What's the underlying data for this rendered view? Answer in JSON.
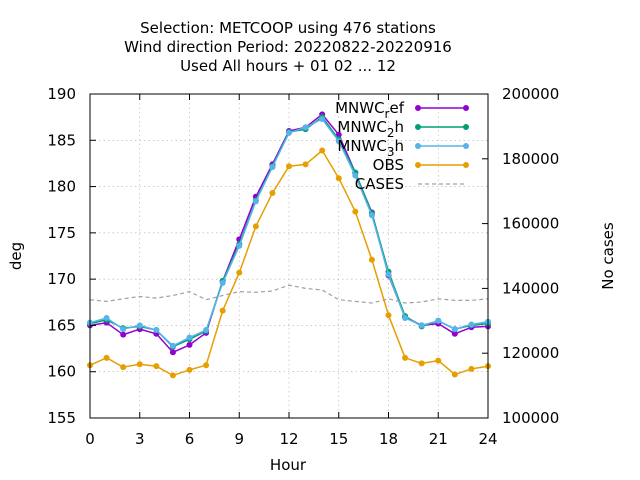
{
  "chart_data": {
    "type": "line",
    "title_lines": [
      "Selection: METCOOP using   476 stations",
      "Wind direction   Period: 20220822-20220916",
      "Used  All hours  + 01 02 ... 12"
    ],
    "xlabel": "Hour",
    "ylabel": "deg",
    "y2label": "No cases",
    "xlim": [
      0,
      24
    ],
    "ylim": [
      155,
      190
    ],
    "y2lim": [
      100000,
      200000
    ],
    "xticks": [
      0,
      3,
      6,
      9,
      12,
      15,
      18,
      21,
      24
    ],
    "yticks": [
      155,
      160,
      165,
      170,
      175,
      180,
      185,
      190
    ],
    "y2ticks": [
      100000,
      120000,
      140000,
      160000,
      180000,
      200000
    ],
    "grid": true,
    "legend_position": "top-right",
    "x": [
      0,
      1,
      2,
      3,
      4,
      5,
      6,
      7,
      8,
      9,
      10,
      11,
      12,
      13,
      14,
      15,
      16,
      17,
      18,
      19,
      20,
      21,
      22,
      23,
      24
    ],
    "series": [
      {
        "name": "MNWC_ref",
        "legend_main": "MNWC",
        "legend_sub": "r",
        "legend_tail": "ef",
        "color": "#9400d3",
        "marker": "circle",
        "axis": "y1",
        "values": [
          165.0,
          165.3,
          164.0,
          164.6,
          164.1,
          162.1,
          162.9,
          164.2,
          169.8,
          174.3,
          178.9,
          182.4,
          186.0,
          186.4,
          187.8,
          185.6,
          181.5,
          177.2,
          170.4,
          165.9,
          165.0,
          165.2,
          164.1,
          164.8,
          164.9
        ]
      },
      {
        "name": "MNWC_2h",
        "legend_main": "MNWC",
        "legend_sub": "2",
        "legend_tail": "h",
        "color": "#009e73",
        "marker": "circle",
        "axis": "y1",
        "values": [
          165.2,
          165.6,
          164.7,
          164.9,
          164.5,
          162.7,
          163.5,
          164.4,
          169.8,
          173.8,
          178.5,
          182.2,
          185.9,
          186.2,
          187.5,
          185.1,
          181.5,
          177.1,
          170.8,
          166.0,
          164.9,
          165.5,
          164.6,
          165.0,
          165.2
        ]
      },
      {
        "name": "MNWC_3h",
        "legend_main": "MNWC",
        "legend_sub": "3",
        "legend_tail": "h",
        "color": "#56b4e9",
        "marker": "circle",
        "axis": "y1",
        "values": [
          165.3,
          165.8,
          164.6,
          165.0,
          164.5,
          162.8,
          163.7,
          164.5,
          169.6,
          173.6,
          178.4,
          182.1,
          185.8,
          186.4,
          187.3,
          184.9,
          181.2,
          176.9,
          170.5,
          165.8,
          165.0,
          165.5,
          164.6,
          165.1,
          165.4
        ]
      },
      {
        "name": "OBS",
        "legend_main": "OBS",
        "legend_sub": "",
        "legend_tail": "",
        "color": "#e69f00",
        "marker": "circle",
        "axis": "y1",
        "values": [
          160.7,
          161.5,
          160.5,
          160.8,
          160.6,
          159.6,
          160.2,
          160.7,
          166.6,
          170.7,
          175.7,
          179.3,
          182.2,
          182.4,
          183.9,
          180.9,
          177.3,
          172.1,
          166.1,
          161.5,
          160.9,
          161.2,
          159.7,
          160.3,
          160.6
        ]
      },
      {
        "name": "CASES",
        "legend_main": "CASES",
        "legend_sub": "",
        "legend_tail": "",
        "color": "#a0a0a0",
        "marker": "none",
        "dashed": true,
        "axis": "y2",
        "values": [
          136500,
          136000,
          136800,
          137500,
          137000,
          137800,
          139000,
          136500,
          137800,
          139000,
          138800,
          139200,
          141000,
          140000,
          139500,
          136500,
          136000,
          135500,
          136800,
          135500,
          135800,
          136800,
          136300,
          136300,
          136800
        ]
      }
    ]
  }
}
